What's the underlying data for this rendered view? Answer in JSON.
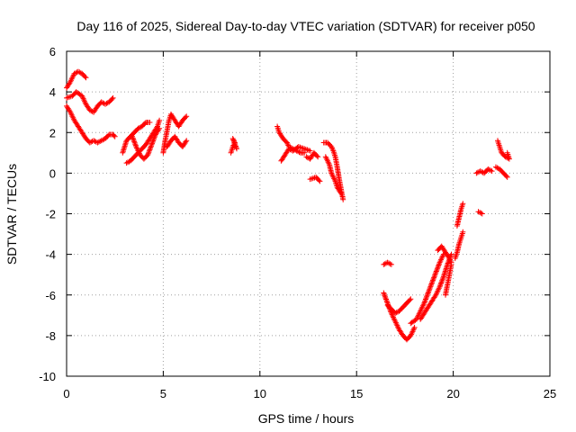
{
  "chart_data": {
    "type": "scatter",
    "title": "Day 116 of 2025, Sidereal Day-to-day VTEC variation (SDTVAR) for receiver p050",
    "xlabel": "GPS time / hours",
    "ylabel": "SDTVAR / TECUs",
    "xlim": [
      0,
      25
    ],
    "ylim": [
      -10,
      6
    ],
    "x_ticks": [
      "0",
      "5",
      "10",
      "15",
      "20",
      "25"
    ],
    "y_ticks": [
      "-10",
      "-8",
      "-6",
      "-4",
      "-2",
      "0",
      "2",
      "4",
      "6"
    ],
    "grid": true,
    "legend": "none",
    "marker": "plus",
    "color": "#ff0000",
    "segments": [
      [
        [
          0.0,
          4.2
        ],
        [
          0.2,
          4.5
        ],
        [
          0.4,
          4.9
        ],
        [
          0.6,
          5.0
        ],
        [
          0.8,
          4.9
        ],
        [
          1.0,
          4.7
        ]
      ],
      [
        [
          0.0,
          3.7
        ],
        [
          0.3,
          3.8
        ],
        [
          0.5,
          4.0
        ],
        [
          0.8,
          3.8
        ],
        [
          1.0,
          3.4
        ],
        [
          1.2,
          3.1
        ],
        [
          1.4,
          3.0
        ],
        [
          1.6,
          3.3
        ],
        [
          1.8,
          3.5
        ],
        [
          2.0,
          3.4
        ],
        [
          2.2,
          3.5
        ],
        [
          2.4,
          3.7
        ]
      ],
      [
        [
          0.0,
          3.3
        ],
        [
          0.2,
          3.0
        ],
        [
          0.4,
          2.6
        ],
        [
          0.6,
          2.3
        ],
        [
          0.8,
          2.0
        ],
        [
          1.0,
          1.7
        ],
        [
          1.2,
          1.5
        ],
        [
          1.4,
          1.6
        ],
        [
          1.6,
          1.5
        ],
        [
          1.8,
          1.6
        ],
        [
          2.0,
          1.7
        ],
        [
          2.2,
          1.9
        ],
        [
          2.4,
          1.9
        ],
        [
          2.5,
          1.8
        ]
      ],
      [
        [
          2.9,
          1.0
        ],
        [
          3.1,
          1.6
        ],
        [
          3.3,
          1.8
        ],
        [
          3.5,
          2.0
        ],
        [
          3.7,
          2.2
        ],
        [
          3.9,
          2.3
        ],
        [
          4.1,
          2.5
        ],
        [
          4.3,
          2.5
        ]
      ],
      [
        [
          3.1,
          0.5
        ],
        [
          3.3,
          0.6
        ],
        [
          3.5,
          0.8
        ],
        [
          3.7,
          1.0
        ],
        [
          3.9,
          1.2
        ],
        [
          4.1,
          1.4
        ],
        [
          4.3,
          1.7
        ],
        [
          4.5,
          2.0
        ],
        [
          4.7,
          2.3
        ],
        [
          4.8,
          2.6
        ]
      ],
      [
        [
          3.4,
          1.8
        ],
        [
          3.6,
          1.3
        ],
        [
          3.8,
          0.9
        ],
        [
          4.0,
          0.7
        ],
        [
          4.2,
          0.9
        ],
        [
          4.4,
          1.4
        ],
        [
          4.6,
          1.9
        ],
        [
          4.8,
          2.2
        ]
      ],
      [
        [
          5.0,
          1.0
        ],
        [
          5.1,
          1.6
        ],
        [
          5.2,
          2.1
        ],
        [
          5.3,
          2.6
        ],
        [
          5.4,
          2.9
        ],
        [
          5.6,
          2.6
        ],
        [
          5.8,
          2.3
        ],
        [
          6.0,
          2.6
        ],
        [
          6.2,
          2.8
        ]
      ],
      [
        [
          5.2,
          1.3
        ],
        [
          5.4,
          1.6
        ],
        [
          5.6,
          1.8
        ],
        [
          5.8,
          1.5
        ],
        [
          6.0,
          1.3
        ],
        [
          6.2,
          1.6
        ]
      ],
      [
        [
          8.5,
          1.0
        ],
        [
          8.6,
          1.3
        ],
        [
          8.7,
          1.5
        ],
        [
          8.6,
          1.7
        ],
        [
          8.8,
          1.2
        ]
      ],
      [
        [
          10.9,
          2.3
        ],
        [
          11.0,
          2.0
        ],
        [
          11.2,
          1.7
        ],
        [
          11.4,
          1.5
        ],
        [
          11.5,
          1.3
        ],
        [
          11.7,
          1.2
        ],
        [
          11.9,
          1.1
        ],
        [
          12.1,
          1.0
        ],
        [
          12.3,
          1.0
        ]
      ],
      [
        [
          11.1,
          0.6
        ],
        [
          11.3,
          0.9
        ],
        [
          11.5,
          1.2
        ],
        [
          11.7,
          1.1
        ],
        [
          12.0,
          1.3
        ],
        [
          12.3,
          1.2
        ],
        [
          12.6,
          1.1
        ]
      ],
      [
        [
          12.4,
          0.8
        ],
        [
          12.6,
          0.7
        ],
        [
          12.8,
          1.0
        ],
        [
          13.0,
          0.8
        ]
      ],
      [
        [
          12.6,
          -0.3
        ],
        [
          12.9,
          -0.2
        ],
        [
          13.1,
          -0.4
        ]
      ],
      [
        [
          13.3,
          1.5
        ],
        [
          13.5,
          1.5
        ],
        [
          13.7,
          1.3
        ],
        [
          13.8,
          1.1
        ],
        [
          13.9,
          0.8
        ],
        [
          14.0,
          0.3
        ],
        [
          14.1,
          -0.3
        ],
        [
          14.2,
          -0.8
        ],
        [
          14.3,
          -1.3
        ]
      ],
      [
        [
          13.4,
          0.8
        ],
        [
          13.6,
          0.4
        ],
        [
          13.7,
          0.0
        ],
        [
          13.9,
          -0.4
        ],
        [
          14.0,
          -0.7
        ],
        [
          14.2,
          -1.0
        ]
      ],
      [
        [
          16.4,
          -4.5
        ],
        [
          16.6,
          -4.4
        ],
        [
          16.8,
          -4.5
        ]
      ],
      [
        [
          16.4,
          -5.9
        ],
        [
          16.6,
          -6.4
        ],
        [
          16.8,
          -6.9
        ],
        [
          17.0,
          -7.3
        ],
        [
          17.2,
          -7.7
        ],
        [
          17.4,
          -8.0
        ],
        [
          17.6,
          -8.2
        ],
        [
          17.8,
          -8.0
        ],
        [
          18.0,
          -7.6
        ]
      ],
      [
        [
          16.6,
          -6.5
        ],
        [
          16.8,
          -6.7
        ],
        [
          17.0,
          -6.9
        ],
        [
          17.2,
          -6.8
        ],
        [
          17.4,
          -6.6
        ],
        [
          17.6,
          -6.4
        ],
        [
          17.8,
          -6.2
        ]
      ],
      [
        [
          17.8,
          -7.4
        ],
        [
          18.1,
          -7.2
        ],
        [
          18.3,
          -6.8
        ],
        [
          18.5,
          -6.4
        ],
        [
          18.7,
          -5.9
        ],
        [
          18.9,
          -5.4
        ],
        [
          19.1,
          -4.9
        ],
        [
          19.3,
          -4.4
        ],
        [
          19.5,
          -4.0
        ]
      ],
      [
        [
          18.3,
          -7.2
        ],
        [
          18.5,
          -6.9
        ],
        [
          18.7,
          -6.6
        ],
        [
          18.9,
          -6.3
        ],
        [
          19.1,
          -6.0
        ],
        [
          19.3,
          -5.6
        ],
        [
          19.5,
          -5.1
        ],
        [
          19.7,
          -4.5
        ],
        [
          19.9,
          -4.0
        ]
      ],
      [
        [
          19.2,
          -3.8
        ],
        [
          19.4,
          -3.6
        ],
        [
          19.6,
          -3.9
        ],
        [
          19.8,
          -4.2
        ],
        [
          19.9,
          -4.4
        ]
      ],
      [
        [
          19.6,
          -6.0
        ],
        [
          19.7,
          -5.5
        ],
        [
          19.8,
          -5.0
        ],
        [
          19.9,
          -4.5
        ]
      ],
      [
        [
          20.1,
          -4.2
        ],
        [
          20.2,
          -3.9
        ],
        [
          20.3,
          -3.5
        ],
        [
          20.4,
          -3.2
        ],
        [
          20.5,
          -2.9
        ]
      ],
      [
        [
          20.2,
          -2.6
        ],
        [
          20.3,
          -2.2
        ],
        [
          20.4,
          -1.8
        ],
        [
          20.5,
          -1.5
        ]
      ],
      [
        [
          21.3,
          -1.9
        ],
        [
          21.5,
          -2.0
        ]
      ],
      [
        [
          21.2,
          0.0
        ],
        [
          21.4,
          0.1
        ],
        [
          21.6,
          0.0
        ],
        [
          21.8,
          0.2
        ],
        [
          22.0,
          0.1
        ]
      ],
      [
        [
          22.2,
          0.3
        ],
        [
          22.4,
          0.2
        ],
        [
          22.6,
          0.0
        ],
        [
          22.8,
          -0.2
        ]
      ],
      [
        [
          22.3,
          1.6
        ],
        [
          22.4,
          1.3
        ],
        [
          22.5,
          1.0
        ],
        [
          22.7,
          0.8
        ],
        [
          22.9,
          0.7
        ],
        [
          22.8,
          1.0
        ]
      ]
    ]
  }
}
